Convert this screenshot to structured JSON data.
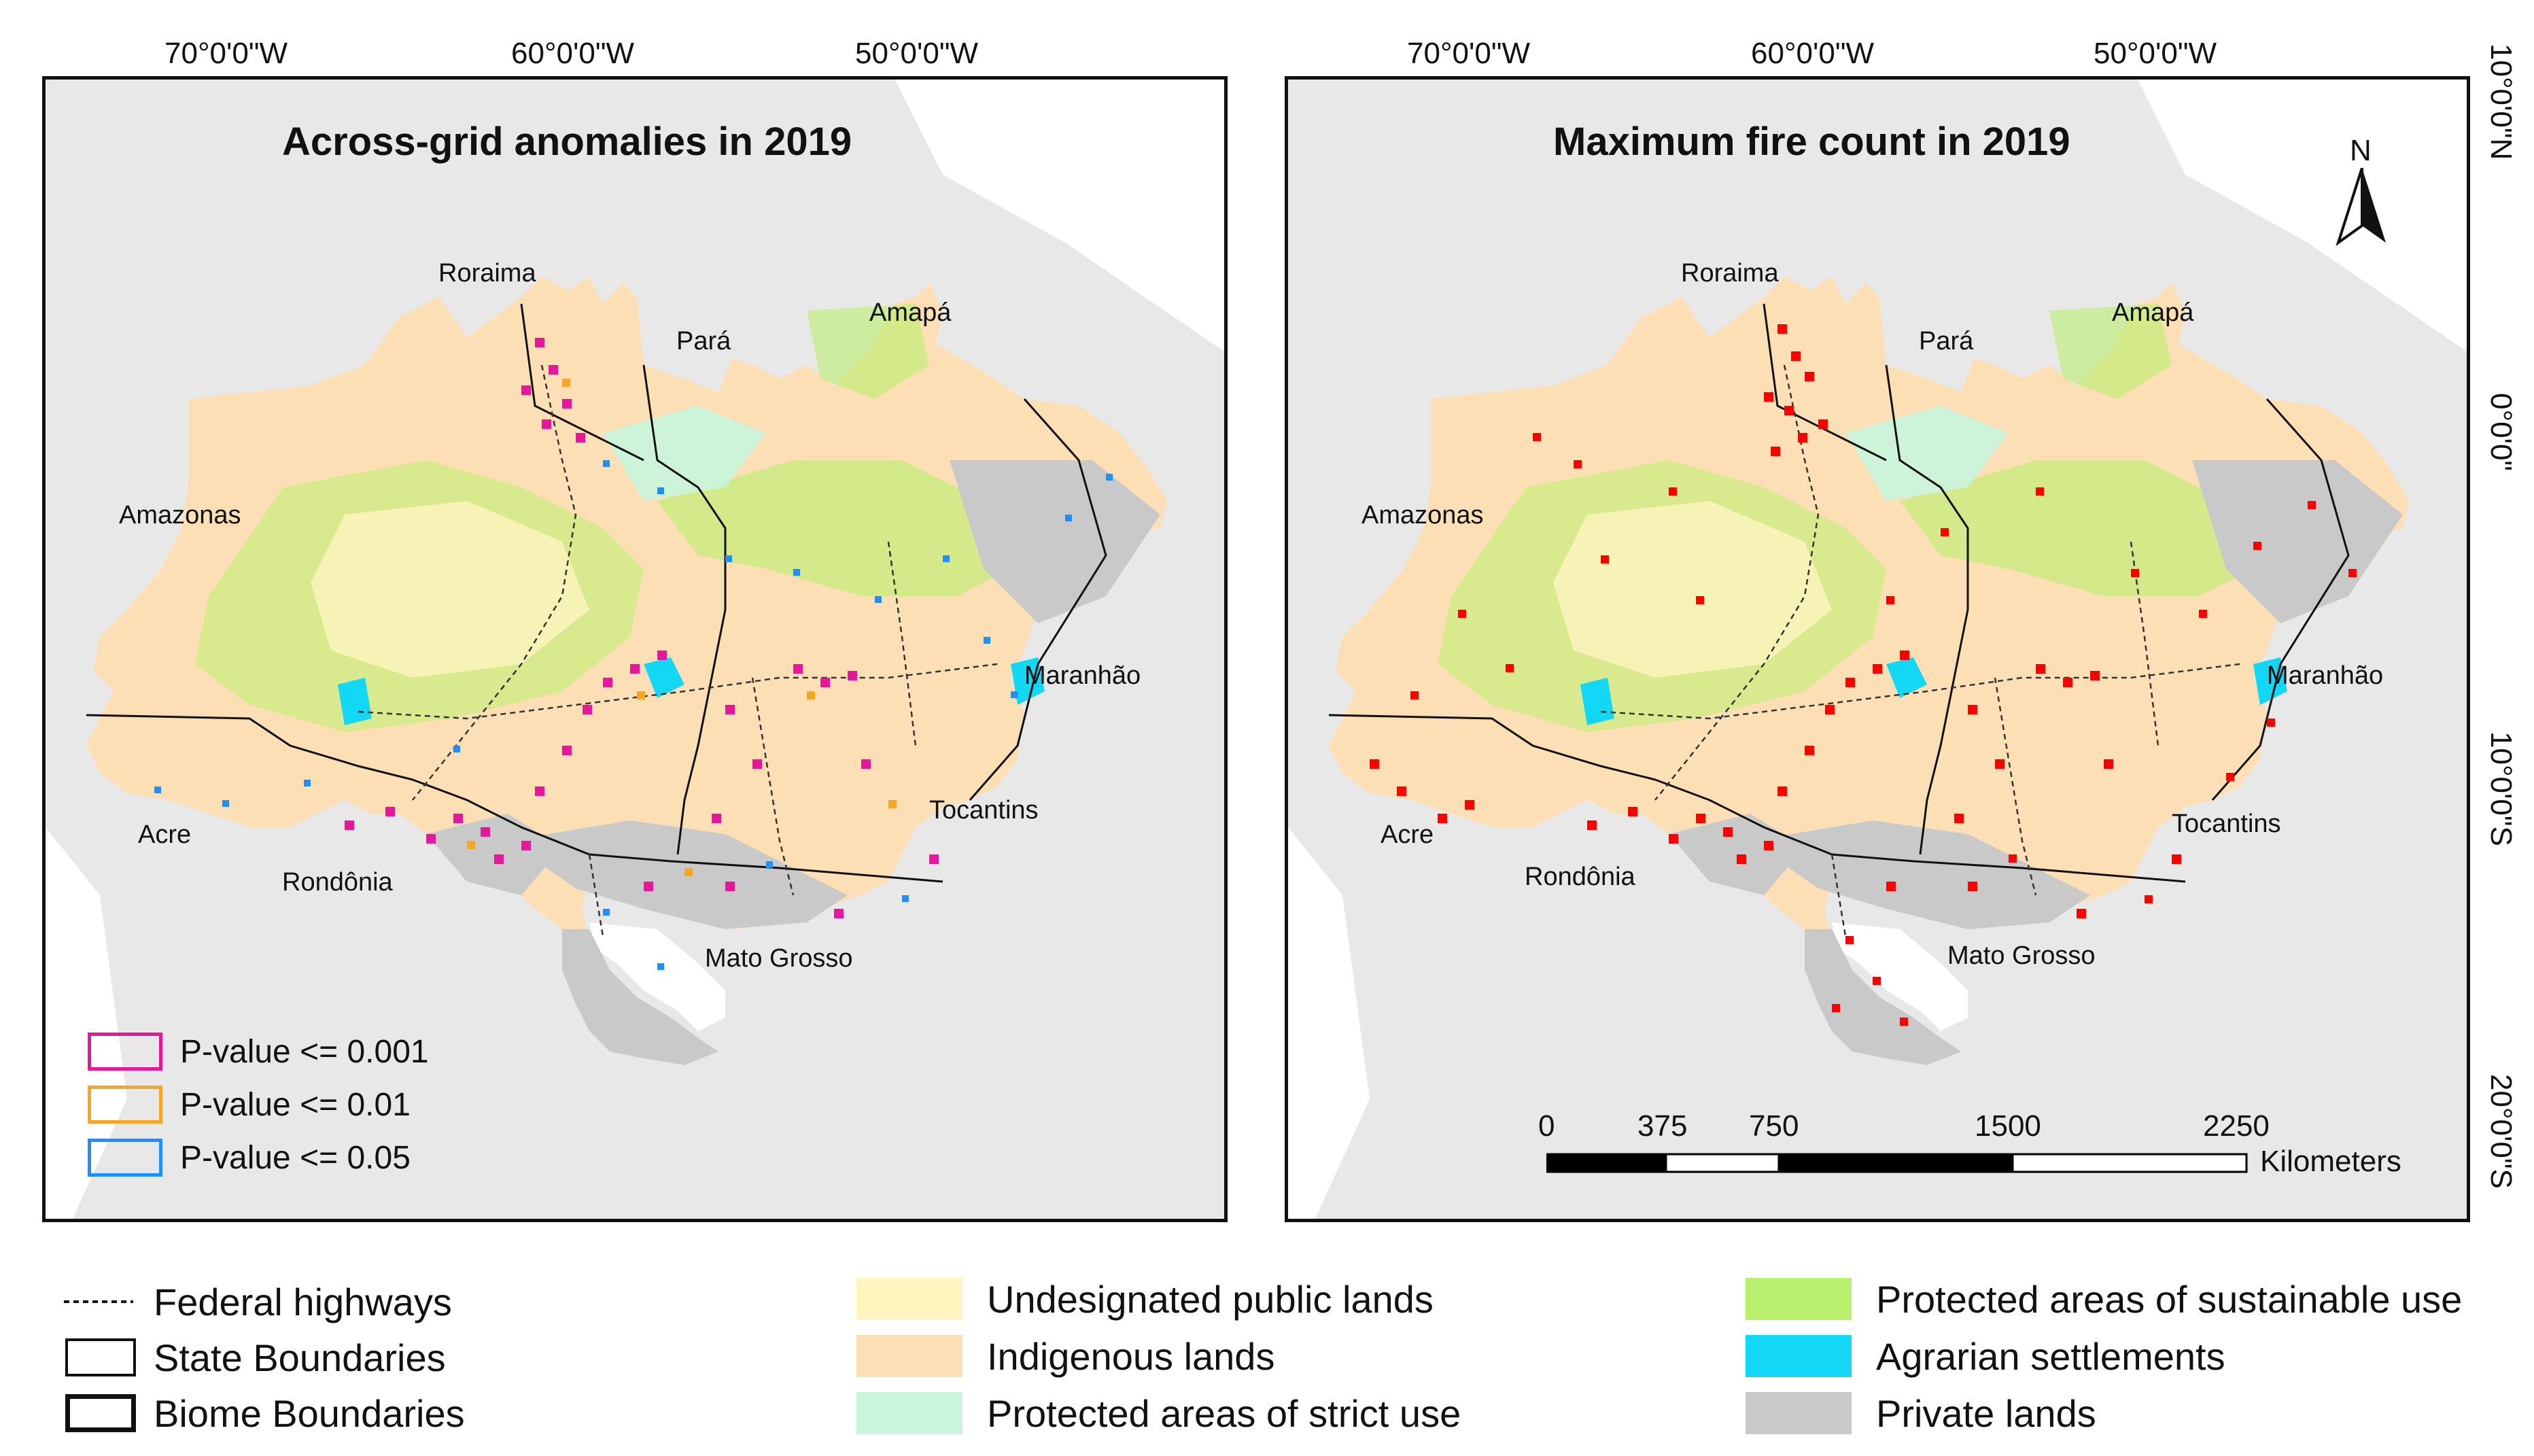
{
  "colors": {
    "background_land": "#ececec",
    "undesignated": "#fdf5bd",
    "indigenous": "#fcdfb5",
    "strict_use": "#c8f5dc",
    "sustainable_use": "#b9f06e",
    "agrarian": "#12d8f5",
    "private": "#c9c9c9",
    "pv_001": "#e5189b",
    "pv_01": "#f5a623",
    "pv_05": "#1f8fff",
    "fire": "#ff0000"
  },
  "left_map": {
    "title": "Across-grid anomalies in 2019",
    "lon_labels": [
      "70°0'0\"W",
      "60°0'0\"W",
      "50°0'0\"W"
    ],
    "states": {
      "roraima": "Roraima",
      "para": "Pará",
      "amapa": "Amapá",
      "amazonas": "Amazonas",
      "maranhao": "Maranhão",
      "acre": "Acre",
      "tocantins": "Tocantins",
      "rondonia": "Rondônia",
      "mato_grosso": "Mato Grosso"
    },
    "pvalue_legend": [
      {
        "label": "P-value <= 0.001",
        "color": "#e5189b"
      },
      {
        "label": "P-value <= 0.01",
        "color": "#f5a623"
      },
      {
        "label": "P-value <= 0.05",
        "color": "#1f8fff"
      }
    ]
  },
  "right_map": {
    "title": "Maximum fire count in 2019",
    "lon_labels": [
      "70°0'0\"W",
      "60°0'0\"W",
      "50°0'0\"W"
    ],
    "lat_labels": [
      "10°0'0\"N",
      "0°0'0\"",
      "10°0'0\"S",
      "20°0'0\"S"
    ],
    "north_arrow": "N",
    "states": {
      "roraima": "Roraima",
      "para": "Pará",
      "amapa": "Amapá",
      "amazonas": "Amazonas",
      "maranhao": "Maranhão",
      "acre": "Acre",
      "tocantins": "Tocantins",
      "rondonia": "Rondônia",
      "mato_grosso": "Mato Grosso"
    },
    "scale_bar": {
      "ticks": [
        "0",
        "375",
        "750",
        "1500",
        "2250"
      ],
      "unit": "Kilometers"
    }
  },
  "legend": {
    "federal_highways": "Federal highways",
    "state_boundaries": "State Boundaries",
    "biome_boundaries": "Biome Boundaries",
    "undesignated": "Undesignated public lands",
    "indigenous": "Indigenous lands",
    "strict_use": "Protected areas of strict use",
    "sustainable_use": "Protected areas of sustainable use",
    "agrarian": "Agrarian settlements",
    "private": "Private lands"
  }
}
